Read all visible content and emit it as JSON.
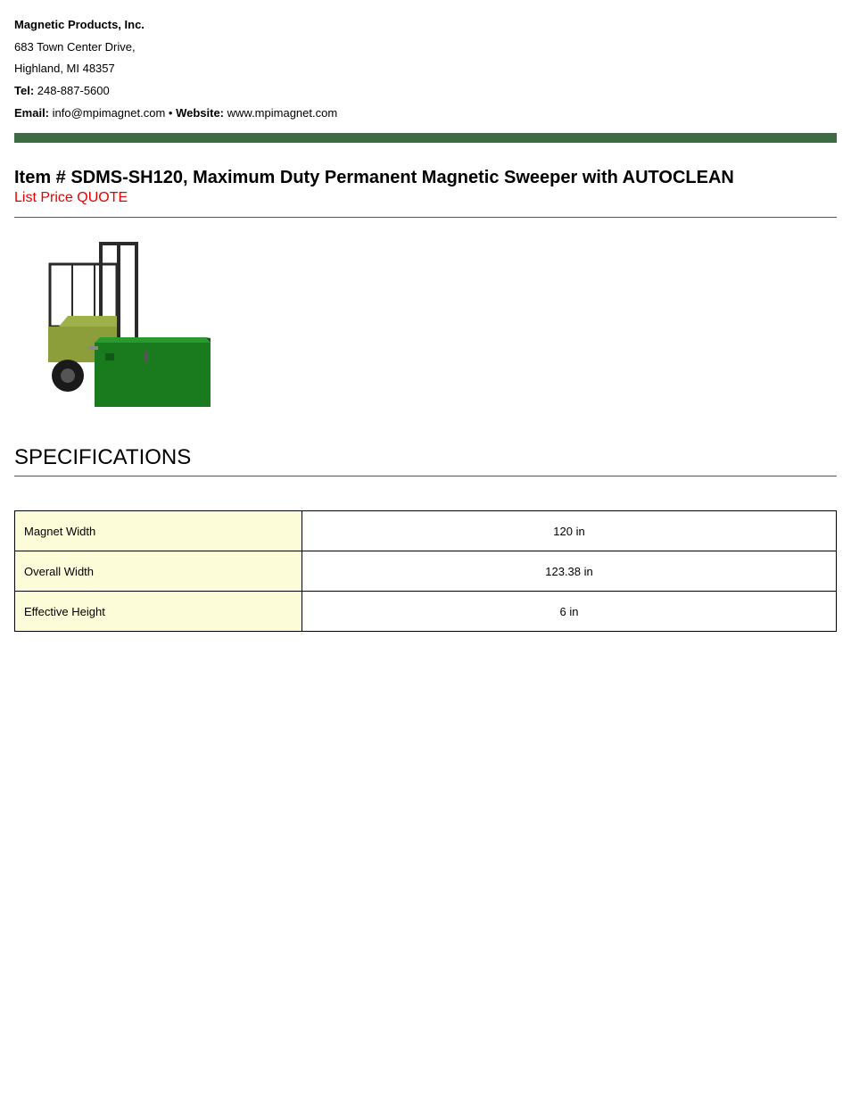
{
  "company": {
    "name": "Magnetic Products, Inc.",
    "address_line1": "683 Town Center Drive,",
    "address_line2": "Highland, MI 48357",
    "tel_label": "Tel:",
    "tel": "248-887-5600",
    "email_label": "Email:",
    "email": "info@mpimagnet.com",
    "separator": " • ",
    "website_label": "Website:",
    "website": "www.mpimagnet.com"
  },
  "item": {
    "title": "Item # SDMS-SH120, Maximum Duty Permanent Magnetic Sweeper with AUTOCLEAN",
    "list_price": "List Price QUOTE"
  },
  "sections": {
    "specifications": "SPECIFICATIONS"
  },
  "specs": {
    "rows": [
      {
        "label": "Magnet Width",
        "value": "120 in"
      },
      {
        "label": "Overall Width",
        "value": "123.38 in"
      },
      {
        "label": "Effective Height",
        "value": "6 in"
      }
    ]
  },
  "styling": {
    "divider_bar_color": "#3d6b43",
    "list_price_color": "#e60000",
    "spec_header_bg": "#fdfcd8",
    "forklift_body_color": "#8b9e3a",
    "sweeper_box_color": "#197a1e",
    "wheel_color": "#1a1a1a",
    "mast_color": "#2a2a2a"
  }
}
